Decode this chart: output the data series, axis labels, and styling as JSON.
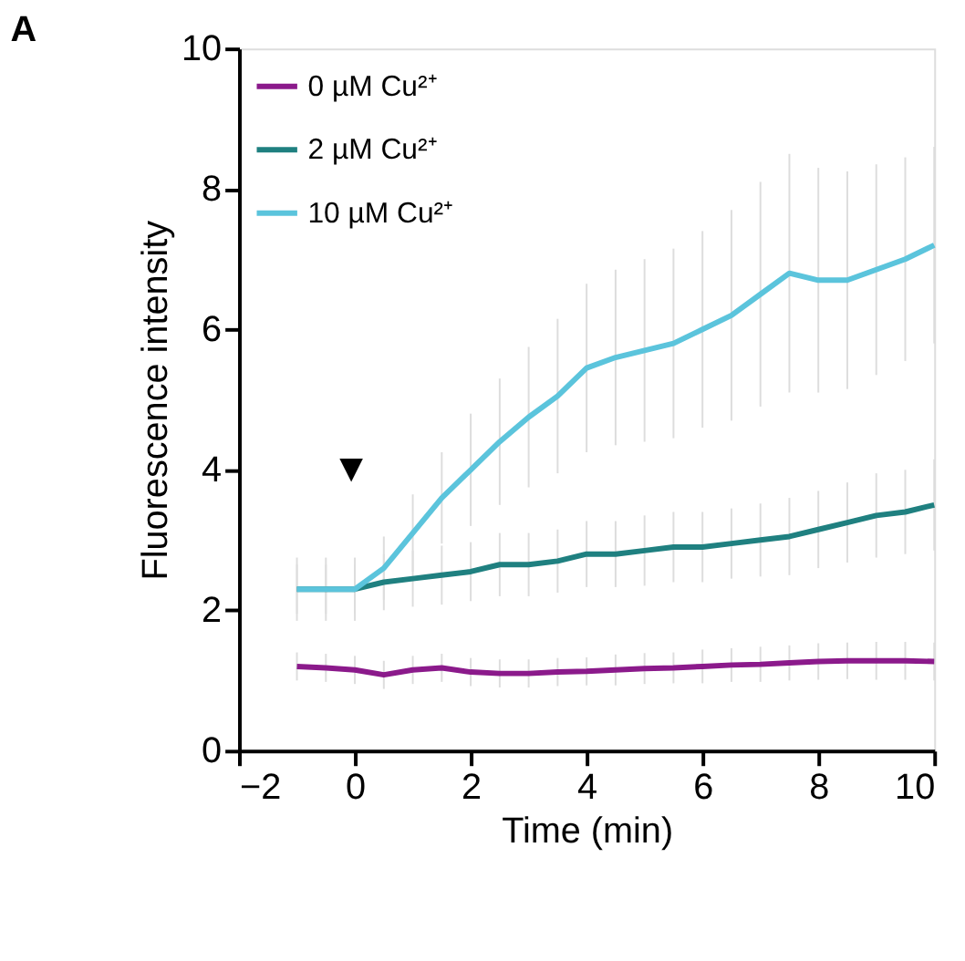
{
  "chart_data": {
    "type": "line",
    "title": "A",
    "xlabel": "Time (min)",
    "ylabel": "Fluorescence intensity",
    "x": [
      -1,
      -0.5,
      0,
      0.5,
      1,
      1.5,
      2,
      2.5,
      3,
      3.5,
      4,
      4.5,
      5,
      5.5,
      6,
      6.5,
      7,
      7.5,
      8,
      8.5,
      9,
      9.5,
      10
    ],
    "series": [
      {
        "name": "0 µM Cu²⁺",
        "color": "#8b1a8b",
        "values": [
          1.2,
          1.18,
          1.15,
          1.08,
          1.15,
          1.18,
          1.12,
          1.1,
          1.1,
          1.12,
          1.13,
          1.15,
          1.17,
          1.18,
          1.2,
          1.22,
          1.23,
          1.25,
          1.27,
          1.28,
          1.28,
          1.28,
          1.27
        ],
        "errors": [
          0.2,
          0.2,
          0.2,
          0.2,
          0.2,
          0.2,
          0.2,
          0.2,
          0.2,
          0.2,
          0.2,
          0.22,
          0.22,
          0.22,
          0.24,
          0.24,
          0.25,
          0.25,
          0.26,
          0.26,
          0.27,
          0.27,
          0.27
        ]
      },
      {
        "name": "2 µM Cu²⁺",
        "color": "#1f8080",
        "values": [
          2.3,
          2.3,
          2.3,
          2.4,
          2.45,
          2.5,
          2.55,
          2.65,
          2.65,
          2.7,
          2.8,
          2.8,
          2.85,
          2.9,
          2.9,
          2.95,
          3.0,
          3.05,
          3.15,
          3.25,
          3.35,
          3.4,
          3.5
        ],
        "errors": [
          0.35,
          0.35,
          0.35,
          0.4,
          0.4,
          0.42,
          0.42,
          0.45,
          0.45,
          0.45,
          0.47,
          0.47,
          0.5,
          0.5,
          0.5,
          0.5,
          0.52,
          0.55,
          0.55,
          0.57,
          0.6,
          0.6,
          0.65
        ]
      },
      {
        "name": "10 µM Cu²⁺",
        "color": "#5bc4dc",
        "values": [
          2.3,
          2.3,
          2.3,
          2.6,
          3.1,
          3.6,
          4.0,
          4.4,
          4.75,
          5.05,
          5.45,
          5.6,
          5.7,
          5.8,
          6.0,
          6.2,
          6.5,
          6.8,
          6.7,
          6.7,
          6.85,
          7.0,
          7.2
        ],
        "errors": [
          0.45,
          0.45,
          0.45,
          0.45,
          0.55,
          0.65,
          0.8,
          0.9,
          1.0,
          1.1,
          1.2,
          1.25,
          1.3,
          1.35,
          1.4,
          1.5,
          1.6,
          1.7,
          1.6,
          1.55,
          1.5,
          1.45,
          1.4
        ]
      }
    ],
    "xlim": [
      -2,
      10
    ],
    "xticks": [
      -2,
      0,
      2,
      4,
      6,
      8,
      10
    ],
    "ylim": [
      0,
      10
    ],
    "yticks": [
      0,
      2,
      4,
      6,
      8,
      10
    ],
    "annotations": [
      "▼"
    ],
    "grid": false,
    "legend": "top left",
    "marker": "none",
    "line_style": "solid"
  }
}
